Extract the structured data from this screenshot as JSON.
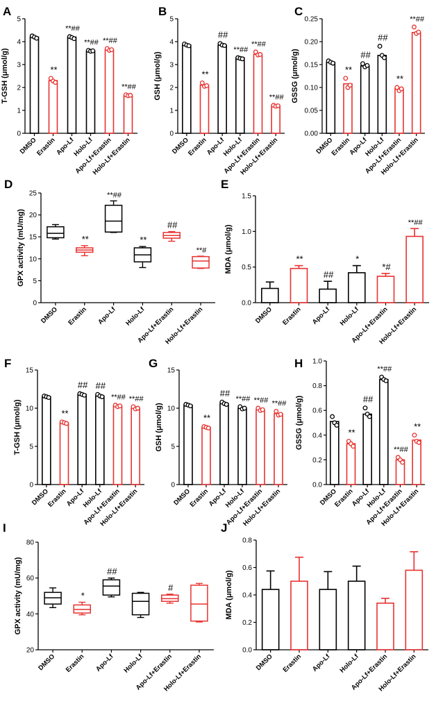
{
  "colors": {
    "black": "#000000",
    "red": "#e8312f"
  },
  "chart_data": [
    {
      "panel": "A",
      "type": "bar-dot",
      "ylabel": "T-GSH (μmol/g)",
      "ylim": [
        0,
        5
      ],
      "yticks": [
        "0",
        "1",
        "2",
        "3",
        "4",
        "5"
      ],
      "categories": [
        "DMSO",
        "Erastin",
        "Apo-Lf",
        "Holo-Lf",
        "Apo-Lf+Erastin",
        "Holo-Lf+Erastin"
      ],
      "values": [
        4.2,
        2.3,
        4.2,
        3.6,
        3.65,
        1.65
      ],
      "points": [
        [
          4.25,
          4.2,
          4.15
        ],
        [
          2.4,
          2.28,
          2.22
        ],
        [
          4.22,
          4.18,
          4.13
        ],
        [
          3.62,
          3.58,
          3.6
        ],
        [
          3.7,
          3.62,
          3.65
        ],
        [
          1.68,
          1.64,
          1.66
        ]
      ],
      "colors": [
        "black",
        "red",
        "black",
        "black",
        "red",
        "red"
      ],
      "annotations": [
        "",
        "**",
        "**##",
        "**##",
        "**##",
        "**##"
      ]
    },
    {
      "panel": "B",
      "type": "bar-dot",
      "ylabel": "GSH (μmol/g)",
      "ylim": [
        0,
        5
      ],
      "yticks": [
        "0",
        "1",
        "2",
        "3",
        "4",
        "5"
      ],
      "categories": [
        "DMSO",
        "Erastin",
        "Apo-Lf",
        "Holo-Lf",
        "Apo-Lf+Erastin",
        "Holo-Lf+Erastin"
      ],
      "values": [
        3.85,
        2.1,
        3.85,
        3.3,
        3.45,
        1.2
      ],
      "points": [
        [
          3.9,
          3.85,
          3.82
        ],
        [
          2.2,
          2.05,
          2.08
        ],
        [
          3.92,
          3.85,
          3.83
        ],
        [
          3.3,
          3.27,
          3.25
        ],
        [
          3.55,
          3.42,
          3.44
        ],
        [
          1.22,
          1.18,
          1.2
        ]
      ],
      "colors": [
        "black",
        "red",
        "black",
        "black",
        "red",
        "red"
      ],
      "annotations": [
        "",
        "**",
        "##",
        "**##",
        "**##",
        "**##"
      ]
    },
    {
      "panel": "C",
      "type": "bar-dot",
      "ylabel": "GSSG (μmol/g)",
      "ylim": [
        0,
        0.25
      ],
      "yticks": [
        "0.00",
        "0.05",
        "0.10",
        "0.15",
        "0.20",
        "0.25"
      ],
      "categories": [
        "DMSO",
        "Erastin",
        "Apo-Lf",
        "Holo-Lf",
        "Apo-Lf+Erastin",
        "Holo-Lf+Erastin"
      ],
      "values": [
        0.155,
        0.108,
        0.147,
        0.17,
        0.097,
        0.22
      ],
      "points": [
        [
          0.158,
          0.155,
          0.153
        ],
        [
          0.12,
          0.1,
          0.105
        ],
        [
          0.152,
          0.145,
          0.148
        ],
        [
          0.19,
          0.17,
          0.165
        ],
        [
          0.1,
          0.093,
          0.097
        ],
        [
          0.232,
          0.218,
          0.221
        ]
      ],
      "colors": [
        "black",
        "red",
        "black",
        "black",
        "red",
        "red"
      ],
      "annotations": [
        "",
        "**",
        "##",
        "##",
        "**",
        "**##"
      ]
    },
    {
      "panel": "D",
      "type": "box",
      "ylabel": "GPX activity (mU/mg)",
      "ylim": [
        0,
        25
      ],
      "yticks": [
        "0",
        "5",
        "10",
        "15",
        "20",
        "25"
      ],
      "categories": [
        "DMSO",
        "Erastin",
        "Apo-Lf",
        "Holo-Lf",
        "Apo-Lf+Erastin",
        "Holo-Lf+Erastin"
      ],
      "boxes": [
        [
          14.5,
          14.8,
          15.8,
          17.3,
          17.8
        ],
        [
          10.7,
          11.5,
          12,
          12.5,
          13
        ],
        [
          16,
          16.1,
          18.6,
          22.2,
          23.2
        ],
        [
          8,
          9.3,
          10.9,
          12.5,
          12.8
        ],
        [
          14,
          14.7,
          15.3,
          16,
          16.2
        ],
        [
          7.8,
          7.9,
          9.5,
          10.5,
          10.6
        ]
      ],
      "colors": [
        "black",
        "red",
        "black",
        "black",
        "red",
        "red"
      ],
      "annotations": [
        "",
        "**",
        "**##",
        "**",
        "##",
        "**#"
      ]
    },
    {
      "panel": "E",
      "type": "bar-err",
      "ylabel": "MDA (μmol/g)",
      "ylim": [
        0,
        1.5
      ],
      "yticks": [
        "0.0",
        "0.5",
        "1.0",
        "1.5"
      ],
      "categories": [
        "DMSO",
        "Erastin",
        "Apo-Lf",
        "Holo-Lf",
        "Apo-Lf+Erastin",
        "Holo-Lf+Erastin"
      ],
      "values": [
        0.2,
        0.48,
        0.19,
        0.42,
        0.37,
        0.93
      ],
      "errors": [
        0.09,
        0.04,
        0.11,
        0.1,
        0.04,
        0.11
      ],
      "colors": [
        "black",
        "red",
        "black",
        "black",
        "red",
        "red"
      ],
      "annotations": [
        "",
        "**",
        "##",
        "*",
        "*#",
        "**##"
      ]
    },
    {
      "panel": "F",
      "type": "bar-dot",
      "ylabel": "T-GSH (μmol/g)",
      "ylim": [
        0,
        15
      ],
      "yticks": [
        "0",
        "5",
        "10",
        "15"
      ],
      "categories": [
        "DMSO",
        "Erastin",
        "Apo-Lf",
        "Holo-Lf",
        "Apo-Lf+Erastin",
        "Holo-Lf+Erastin"
      ],
      "values": [
        11.5,
        8.1,
        11.8,
        11.6,
        10.3,
        10.0
      ],
      "points": [
        [
          11.6,
          11.5,
          11.4
        ],
        [
          8.2,
          8.1,
          8.0
        ],
        [
          11.9,
          11.8,
          11.7
        ],
        [
          11.8,
          11.6,
          11.5
        ],
        [
          10.4,
          10.2,
          10.3
        ],
        [
          10.2,
          9.9,
          10.0
        ]
      ],
      "colors": [
        "black",
        "red",
        "black",
        "black",
        "red",
        "red"
      ],
      "annotations": [
        "",
        "**",
        "##",
        "##",
        "**##",
        "**##"
      ]
    },
    {
      "panel": "G",
      "type": "bar-dot",
      "ylabel": "GSH (μmol/g)",
      "ylim": [
        0,
        15
      ],
      "yticks": [
        "0",
        "5",
        "10",
        "15"
      ],
      "categories": [
        "DMSO",
        "Erastin",
        "Apo-Lf",
        "Holo-Lf",
        "Apo-Lf+Erastin",
        "Holo-Lf+Erastin"
      ],
      "values": [
        10.4,
        7.5,
        10.6,
        10.0,
        9.8,
        9.3
      ],
      "points": [
        [
          10.5,
          10.4,
          10.3
        ],
        [
          7.6,
          7.5,
          7.4
        ],
        [
          10.8,
          10.6,
          10.5
        ],
        [
          10.2,
          9.9,
          10.0
        ],
        [
          10.0,
          9.7,
          9.8
        ],
        [
          9.6,
          9.1,
          9.2
        ]
      ],
      "colors": [
        "black",
        "red",
        "black",
        "black",
        "red",
        "red"
      ],
      "annotations": [
        "",
        "**",
        "##",
        "**##",
        "**##",
        "**##"
      ]
    },
    {
      "panel": "H",
      "type": "bar-dot",
      "ylabel": "GSSG (μmol/g)",
      "ylim": [
        0,
        1.0
      ],
      "yticks": [
        "0.0",
        "0.2",
        "0.4",
        "0.6",
        "0.8",
        "1.0"
      ],
      "categories": [
        "DMSO",
        "Erastin",
        "Apo-Lf",
        "Holo-Lf",
        "Apo-Lf+Erastin",
        "Holo-Lf+Erastin"
      ],
      "values": [
        0.51,
        0.33,
        0.57,
        0.85,
        0.2,
        0.36
      ],
      "points": [
        [
          0.55,
          0.5,
          0.48
        ],
        [
          0.35,
          0.33,
          0.31
        ],
        [
          0.62,
          0.57,
          0.55
        ],
        [
          0.87,
          0.85,
          0.84
        ],
        [
          0.22,
          0.2,
          0.18
        ],
        [
          0.4,
          0.35,
          0.34
        ]
      ],
      "colors": [
        "black",
        "red",
        "black",
        "black",
        "red",
        "red"
      ],
      "annotations": [
        "",
        "**",
        "##",
        "**##",
        "**##",
        "**"
      ]
    },
    {
      "panel": "I",
      "type": "box",
      "ylabel": "GPX activity (mU/mg)",
      "ylim": [
        20,
        80
      ],
      "yticks": [
        "20",
        "40",
        "60",
        "80"
      ],
      "categories": [
        "DMSO",
        "Erastin",
        "Apo-Lf",
        "Holo-Lf",
        "Apo-Lf+Erastin",
        "Holo-Lf+Erastin"
      ],
      "boxes": [
        [
          43.5,
          45.5,
          49,
          52,
          54.5
        ],
        [
          39.5,
          40.5,
          42.5,
          45,
          46.5
        ],
        [
          49.5,
          50.5,
          55.5,
          59,
          60
        ],
        [
          38,
          39.5,
          47,
          51.5,
          52
        ],
        [
          46,
          47,
          48.5,
          50.5,
          51
        ],
        [
          35.5,
          36,
          45.5,
          56,
          57
        ]
      ],
      "colors": [
        "black",
        "red",
        "black",
        "black",
        "red",
        "red"
      ],
      "annotations": [
        "",
        "*",
        "##",
        "",
        "#",
        ""
      ]
    },
    {
      "panel": "J",
      "type": "bar-err",
      "ylabel": "MDA (μmol/g)",
      "ylim": [
        0,
        0.8
      ],
      "yticks": [
        "0.0",
        "0.2",
        "0.4",
        "0.6",
        "0.8"
      ],
      "categories": [
        "DMSO",
        "Erastin",
        "Apo-Lf",
        "Holo-Lf",
        "Apo-Lf+Erastin",
        "Holo-Lf+Erastin"
      ],
      "values": [
        0.44,
        0.5,
        0.44,
        0.5,
        0.34,
        0.58
      ],
      "errors": [
        0.135,
        0.175,
        0.13,
        0.11,
        0.035,
        0.135
      ],
      "colors": [
        "black",
        "red",
        "black",
        "black",
        "red",
        "red"
      ],
      "annotations": [
        "",
        "",
        "",
        "",
        "",
        ""
      ]
    }
  ]
}
